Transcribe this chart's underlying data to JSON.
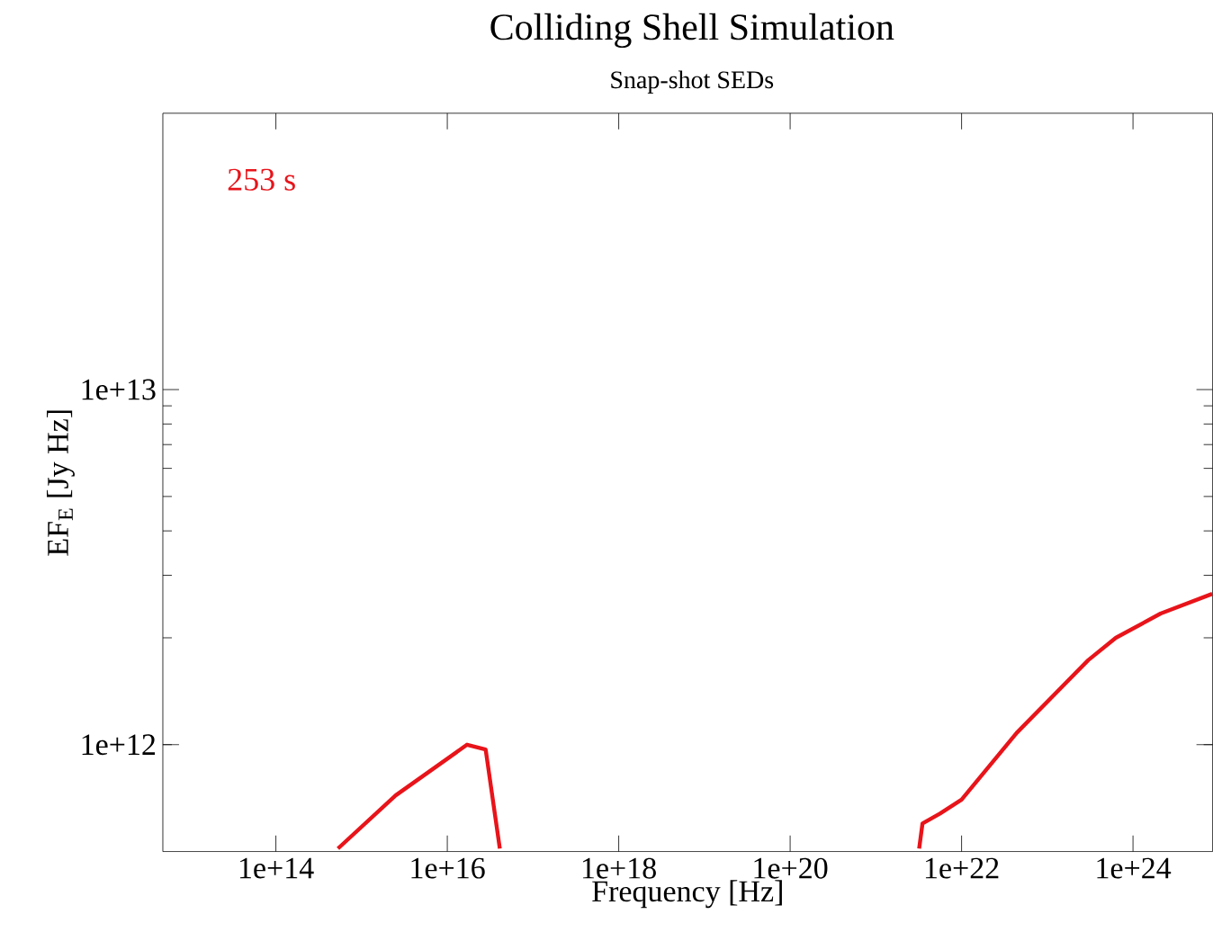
{
  "chart_data": {
    "type": "line",
    "title": "Colliding Shell Simulation",
    "subtitle": "Snap-shot SEDs",
    "xlabel": "Frequency [Hz]",
    "ylabel": "EF$_{E}$ [Jy Hz]",
    "x": [
      530000000000000.0,
      2500000000000000.0,
      1.7e+16,
      2.8e+16,
      4.1e+16,
      1e+19,
      3.2e+21,
      3.5e+21,
      5.6e+21,
      1e+22,
      4.4e+22,
      3e+23,
      6.3e+23,
      2.1e+24,
      8.4e+24
    ],
    "series": [
      {
        "name": "253 s",
        "color": "#e8141a",
        "values": [
          510000000000.0,
          720000000000.0,
          1000000000000.0,
          970000000000.0,
          510000000000.0,
          null,
          510000000000.0,
          600000000000.0,
          640000000000.0,
          700000000000.0,
          1080000000000.0,
          1730000000000.0,
          2000000000000.0,
          2340000000000.0,
          2660000000000.0
        ]
      }
    ],
    "log": "xy",
    "xlim": [
      4800000000000.0,
      8.5e+24
    ],
    "ylim": [
      500000000000.0,
      60000000000000.0
    ],
    "xticks": [
      {
        "value": 100000000000000.0,
        "label": "1e+14"
      },
      {
        "value": 1e+16,
        "label": "1e+16"
      },
      {
        "value": 1e+18,
        "label": "1e+18"
      },
      {
        "value": 1e+20,
        "label": "1e+20"
      },
      {
        "value": 1e+22,
        "label": "1e+22"
      },
      {
        "value": 1e+24,
        "label": "1e+24"
      }
    ],
    "yticks": [
      {
        "value": 1000000000000.0,
        "label": "1e+12"
      },
      {
        "value": 10000000000000.0,
        "label": "1e+13"
      }
    ],
    "grid": false,
    "marker": "none",
    "line_style": "solid"
  }
}
